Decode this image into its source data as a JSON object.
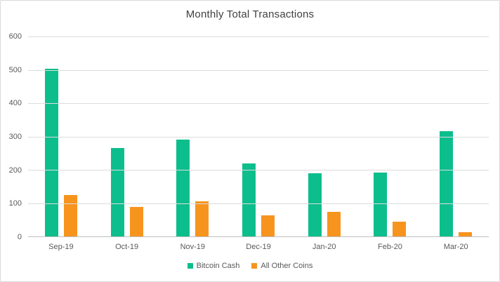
{
  "chart_data": {
    "type": "bar",
    "title": "Monthly Total Transactions",
    "categories": [
      "Sep-19",
      "Oct-19",
      "Nov-19",
      "Dec-19",
      "Jan-20",
      "Feb-20",
      "Mar-20"
    ],
    "series": [
      {
        "name": "Bitcoin Cash",
        "color": "#0dbe8d",
        "values": [
          503,
          265,
          291,
          220,
          190,
          192,
          316
        ]
      },
      {
        "name": "All Other Coins",
        "color": "#f7941e",
        "values": [
          124,
          89,
          105,
          64,
          74,
          45,
          12
        ]
      }
    ],
    "xlabel": "",
    "ylabel": "",
    "ylim": [
      0,
      600
    ],
    "y_ticks": [
      600,
      500,
      400,
      300,
      200,
      100,
      0
    ],
    "grid": "horizontal",
    "legend_position": "bottom-center",
    "colors": {
      "title_text": "#404040",
      "axis_text": "#595959",
      "gridline": "#dcdcdc",
      "axis_line": "#bfbfbf",
      "background": "#ffffff",
      "border": "#d9d9d9"
    }
  }
}
